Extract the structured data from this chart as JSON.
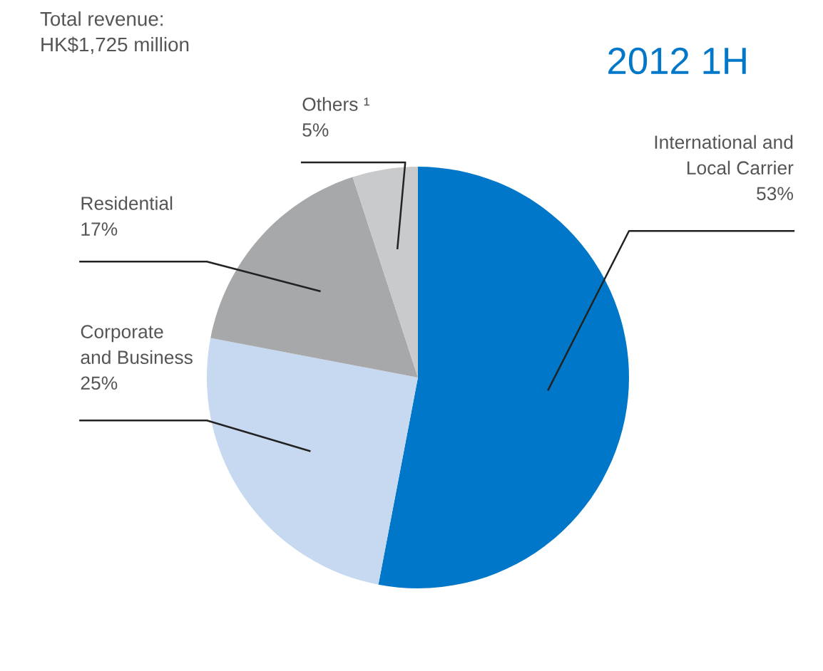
{
  "chart_data": {
    "type": "pie",
    "title": "2012 1H",
    "annotations": [
      "Total revenue:\nHK$1,725 million"
    ],
    "categories": [
      "International and\nLocal Carrier",
      "Corporate\nand Business",
      "Residential",
      "Others ¹"
    ],
    "values": [
      53,
      25,
      17,
      5
    ],
    "colors": [
      "#0077c8",
      "#c6d9f0",
      "#a7a8aa",
      "#c9cacc"
    ],
    "value_labels": [
      "53%",
      "25%",
      "17%",
      "5%"
    ],
    "legend": false
  }
}
